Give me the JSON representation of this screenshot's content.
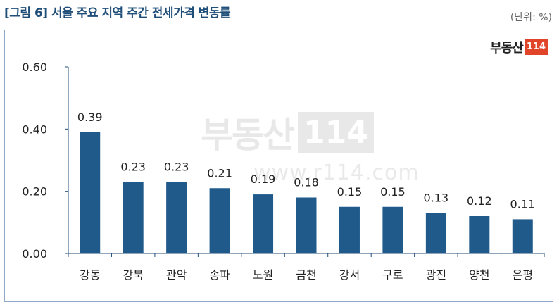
{
  "header": {
    "title": "[그림 6] 서울 주요 지역 주간 전세가격 변동률",
    "unit": "(단위: %)"
  },
  "logo": {
    "text": "부동산",
    "box": "114"
  },
  "watermark": {
    "text": "부동산",
    "box": "114",
    "url": "www.r114.com"
  },
  "colors": {
    "bar": "#1f5a8b",
    "axis": "#1f4e79",
    "title": "#1f4e79",
    "logo_accent": "#e0452a"
  },
  "chart_data": {
    "type": "bar",
    "title": "[그림 6] 서울 주요 지역 주간 전세가격 변동률",
    "unit": "(단위: %)",
    "categories": [
      "강동",
      "강북",
      "관악",
      "송파",
      "노원",
      "금천",
      "강서",
      "구로",
      "광진",
      "양천",
      "은평"
    ],
    "values": [
      0.39,
      0.23,
      0.23,
      0.21,
      0.19,
      0.18,
      0.15,
      0.15,
      0.13,
      0.12,
      0.11
    ],
    "data_labels": [
      "0.39",
      "0.23",
      "0.23",
      "0.21",
      "0.19",
      "0.18",
      "0.15",
      "0.15",
      "0.13",
      "0.12",
      "0.11"
    ],
    "yticks": [
      "0.00",
      "0.20",
      "0.40",
      "0.60"
    ],
    "ytick_values": [
      0,
      0.2,
      0.4,
      0.6
    ],
    "ylim": [
      0,
      0.6
    ],
    "grid": false,
    "legend": "none"
  }
}
